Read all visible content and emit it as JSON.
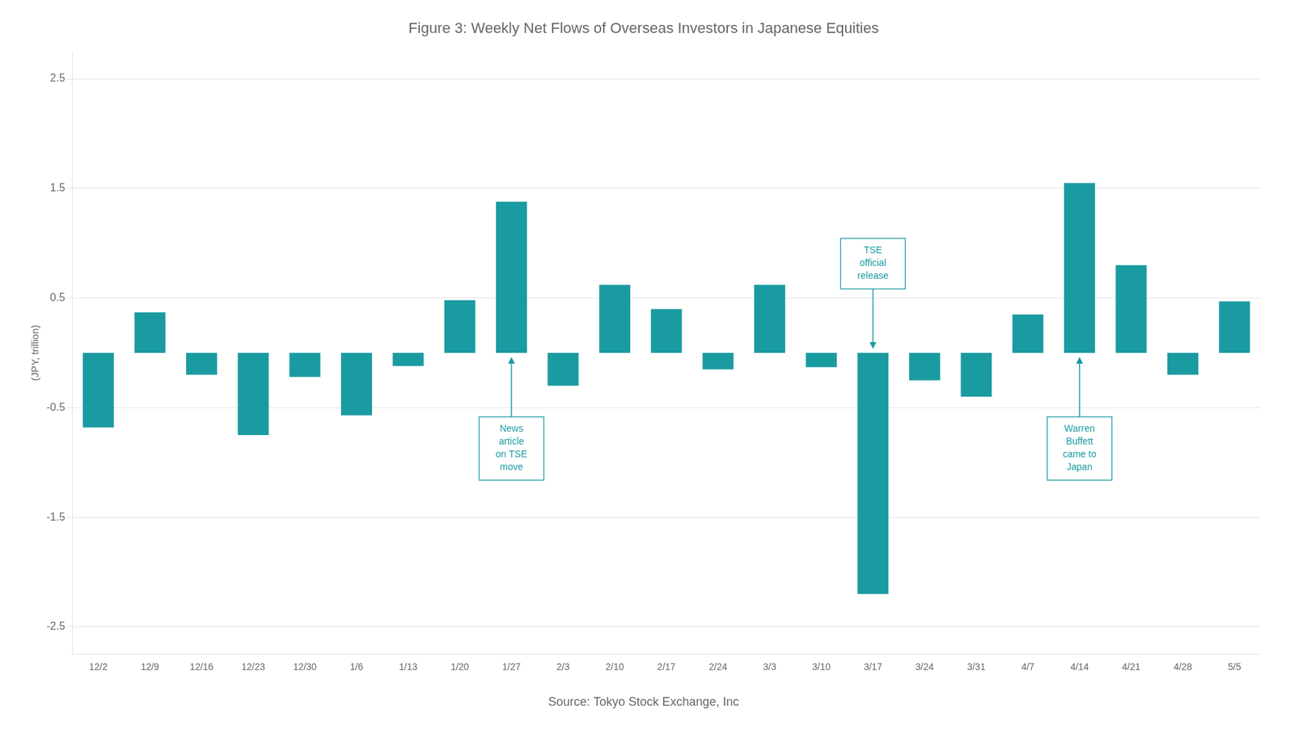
{
  "chart_data": {
    "type": "bar",
    "title": "Figure 3: Weekly Net Flows of Overseas Investors in Japanese Equities",
    "ylabel": "(JPY, trillion)",
    "source": "Source: Tokyo Stock Exchange, Inc",
    "color": "#1a9ba1",
    "categories": [
      "12/2",
      "12/9",
      "12/16",
      "12/23",
      "12/30",
      "1/6",
      "1/13",
      "1/20",
      "1/27",
      "2/3",
      "2/10",
      "2/17",
      "2/24",
      "3/3",
      "3/10",
      "3/17",
      "3/24",
      "3/31",
      "4/7",
      "4/14",
      "4/21",
      "4/28",
      "5/5"
    ],
    "values": [
      -0.68,
      0.37,
      -0.2,
      -0.75,
      -0.22,
      -0.57,
      -0.12,
      0.48,
      1.38,
      -0.3,
      0.62,
      0.4,
      -0.15,
      0.62,
      -0.13,
      -2.2,
      -0.25,
      -0.4,
      0.35,
      1.55,
      0.8,
      -0.2,
      0.47
    ],
    "ylim": [
      -2.75,
      2.75
    ],
    "yticks": [
      -2.5,
      -1.5,
      -0.5,
      0.5,
      1.5,
      2.5
    ],
    "grid": true,
    "annotations": [
      {
        "text": "News\narticle\non TSE\nmove",
        "category": "1/27"
      },
      {
        "text": "TSE\nofficial\nrelease",
        "category": "3/17"
      },
      {
        "text": "Warren\nBuffett\ncame to\nJapan",
        "category": "4/14"
      }
    ]
  }
}
